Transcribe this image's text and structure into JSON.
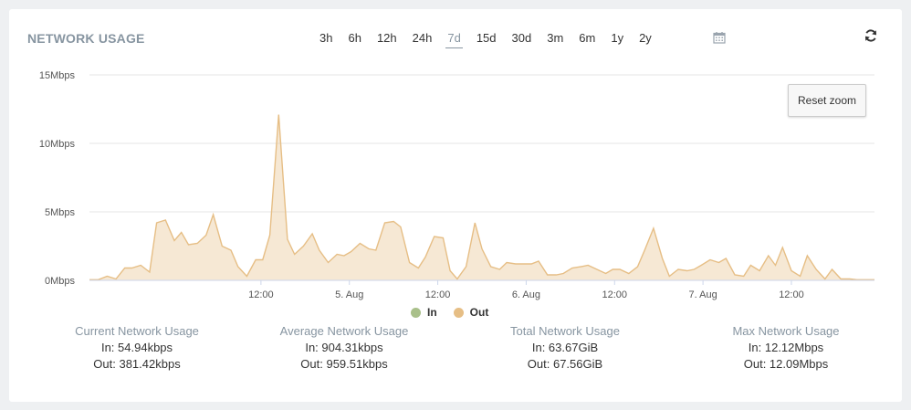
{
  "header": {
    "title": "NETWORK USAGE"
  },
  "ranges": [
    "3h",
    "6h",
    "12h",
    "24h",
    "7d",
    "15d",
    "30d",
    "3m",
    "6m",
    "1y",
    "2y"
  ],
  "active_range": "7d",
  "reset_zoom_label": "Reset zoom",
  "legend": [
    {
      "label": "In",
      "color": "#a9c08a"
    },
    {
      "label": "Out",
      "color": "#e6be85"
    }
  ],
  "stats": [
    {
      "heading": "Current Network Usage",
      "in": "In: 54.94kbps",
      "out": "Out: 381.42kbps"
    },
    {
      "heading": "Average Network Usage",
      "in": "In: 904.31kbps",
      "out": "Out: 959.51kbps"
    },
    {
      "heading": "Total Network Usage",
      "in": "In: 63.67GiB",
      "out": "Out: 67.56GiB"
    },
    {
      "heading": "Max Network Usage",
      "in": "In: 12.12Mbps",
      "out": "Out: 12.09Mbps"
    }
  ],
  "chart_data": {
    "type": "area",
    "y_tick_labels": [
      "0Mbps",
      "5Mbps",
      "10Mbps",
      "15Mbps"
    ],
    "ylim": [
      0,
      15
    ],
    "x_ticks": [
      {
        "label": "12:00",
        "x": 0.5
      },
      {
        "label": "5. Aug",
        "x": 1
      },
      {
        "label": "12:00",
        "x": 1.5
      },
      {
        "label": "6. Aug",
        "x": 2
      },
      {
        "label": "12:00",
        "x": 2.5
      },
      {
        "label": "7. Aug",
        "x": 3
      },
      {
        "label": "12:00",
        "x": 3.5
      }
    ],
    "xlim": [
      -0.47,
      3.97
    ],
    "series": [
      {
        "name": "Out",
        "color": "#e6be85",
        "x": [
          -0.47,
          -0.42,
          -0.37,
          -0.32,
          -0.27,
          -0.23,
          -0.18,
          -0.13,
          -0.09,
          -0.04,
          0.01,
          0.05,
          0.09,
          0.14,
          0.19,
          0.23,
          0.28,
          0.33,
          0.37,
          0.42,
          0.47,
          0.51,
          0.55,
          0.6,
          0.65,
          0.69,
          0.74,
          0.79,
          0.83,
          0.88,
          0.93,
          0.97,
          1.01,
          1.06,
          1.11,
          1.15,
          1.2,
          1.25,
          1.29,
          1.34,
          1.39,
          1.43,
          1.48,
          1.53,
          1.57,
          1.61,
          1.66,
          1.71,
          1.75,
          1.8,
          1.85,
          1.89,
          1.94,
          1.99,
          2.03,
          2.07,
          2.12,
          2.17,
          2.21,
          2.26,
          2.31,
          2.35,
          2.4,
          2.45,
          2.49,
          2.53,
          2.58,
          2.63,
          2.67,
          2.72,
          2.77,
          2.81,
          2.86,
          2.91,
          2.95,
          2.99,
          3.04,
          3.09,
          3.13,
          3.18,
          3.23,
          3.27,
          3.32,
          3.37,
          3.41,
          3.45,
          3.5,
          3.55,
          3.59,
          3.64,
          3.69,
          3.73,
          3.78,
          3.83,
          3.87,
          3.92,
          3.97
        ],
        "values": [
          0.05,
          0.05,
          0.3,
          0.1,
          0.9,
          0.9,
          1.1,
          0.6,
          4.2,
          4.4,
          2.9,
          3.5,
          2.6,
          2.7,
          3.3,
          4.8,
          2.5,
          2.2,
          1.0,
          0.3,
          1.5,
          1.5,
          3.3,
          12.1,
          3.0,
          1.9,
          2.5,
          3.4,
          2.2,
          1.3,
          1.9,
          1.8,
          2.1,
          2.7,
          2.3,
          2.2,
          4.2,
          4.3,
          3.9,
          1.3,
          0.9,
          1.7,
          3.2,
          3.1,
          0.7,
          0.1,
          1.0,
          4.2,
          2.3,
          1.0,
          0.8,
          1.3,
          1.2,
          1.2,
          1.2,
          1.4,
          0.4,
          0.4,
          0.5,
          0.9,
          1.0,
          1.1,
          0.8,
          0.5,
          0.8,
          0.8,
          0.5,
          1.0,
          2.2,
          3.8,
          1.6,
          0.3,
          0.8,
          0.7,
          0.8,
          1.1,
          1.5,
          1.3,
          1.6,
          0.4,
          0.3,
          1.1,
          0.7,
          1.8,
          1.1,
          2.4,
          0.7,
          0.3,
          1.8,
          0.8,
          0.1,
          0.8,
          0.1,
          0.1,
          0.05,
          0.05,
          0.05
        ]
      }
    ]
  }
}
